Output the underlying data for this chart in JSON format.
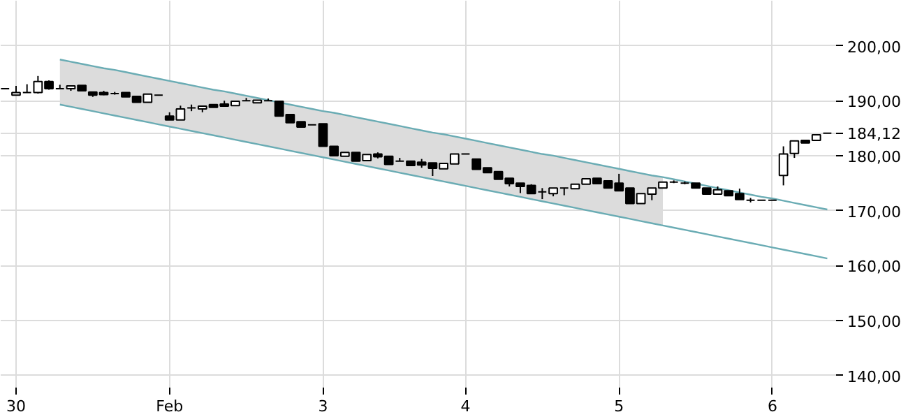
{
  "chart_data": {
    "type": "candlestick",
    "categories": [
      null,
      "30",
      null,
      null,
      null,
      null,
      null,
      null,
      null,
      null,
      null,
      null,
      null,
      null,
      null,
      "Feb",
      null,
      null,
      null,
      null,
      null,
      null,
      null,
      null,
      null,
      null,
      null,
      null,
      null,
      "3",
      null,
      null,
      null,
      null,
      null,
      null,
      null,
      null,
      null,
      null,
      null,
      null,
      "4",
      null,
      null,
      null,
      null,
      null,
      null,
      null,
      null,
      null,
      null,
      null,
      null,
      null,
      "5",
      null,
      null,
      null,
      null,
      null,
      null,
      null,
      null,
      null,
      null,
      null,
      null,
      null,
      "6",
      null,
      null,
      null,
      null,
      null
    ],
    "ohlc": [
      [
        192.2,
        192.2,
        192.2,
        192.2
      ],
      [
        191.0,
        192.7,
        191.0,
        191.5
      ],
      [
        191.5,
        193.0,
        191.5,
        191.5
      ],
      [
        191.5,
        194.5,
        191.3,
        193.5
      ],
      [
        193.5,
        193.7,
        192.0,
        192.2
      ],
      [
        192.2,
        192.9,
        192.2,
        192.2
      ],
      [
        192.2,
        192.7,
        191.8,
        192.7
      ],
      [
        192.8,
        192.8,
        191.8,
        191.8
      ],
      [
        191.6,
        191.6,
        190.7,
        191.0
      ],
      [
        191.5,
        191.8,
        191.0,
        191.1
      ],
      [
        191.3,
        191.6,
        191.1,
        191.3
      ],
      [
        191.5,
        191.5,
        190.7,
        190.7
      ],
      [
        190.8,
        190.8,
        189.7,
        189.7
      ],
      [
        189.7,
        191.2,
        189.7,
        191.2
      ],
      [
        191.0,
        191.0,
        191.0,
        191.0
      ],
      [
        187.2,
        187.9,
        186.5,
        186.5
      ],
      [
        186.5,
        189.1,
        186.5,
        188.5
      ],
      [
        188.7,
        189.3,
        188.1,
        188.7
      ],
      [
        188.5,
        189.0,
        187.9,
        189.0
      ],
      [
        189.3,
        189.3,
        188.8,
        188.8
      ],
      [
        189.4,
        190.0,
        189.0,
        189.0
      ],
      [
        189.1,
        189.9,
        189.1,
        189.9
      ],
      [
        190.0,
        190.5,
        190.0,
        190.0
      ],
      [
        189.6,
        190.1,
        189.6,
        190.1
      ],
      [
        190.0,
        190.4,
        190.0,
        190.0
      ],
      [
        189.9,
        189.9,
        187.2,
        187.2
      ],
      [
        187.5,
        187.5,
        186.0,
        186.0
      ],
      [
        186.2,
        186.2,
        185.2,
        185.2
      ],
      [
        185.6,
        185.6,
        185.6,
        185.6
      ],
      [
        185.8,
        185.8,
        181.7,
        181.7
      ],
      [
        181.7,
        181.7,
        180.0,
        180.0
      ],
      [
        179.9,
        180.6,
        179.9,
        180.6
      ],
      [
        180.6,
        180.6,
        179.0,
        179.0
      ],
      [
        179.1,
        180.2,
        179.1,
        180.2
      ],
      [
        180.3,
        180.6,
        179.5,
        179.8
      ],
      [
        179.9,
        179.9,
        178.4,
        178.4
      ],
      [
        179.0,
        179.6,
        179.0,
        179.0
      ],
      [
        179.0,
        179.0,
        178.2,
        178.2
      ],
      [
        178.8,
        179.4,
        177.8,
        178.3
      ],
      [
        178.7,
        178.7,
        176.3,
        177.7
      ],
      [
        177.6,
        178.6,
        177.6,
        178.6
      ],
      [
        178.5,
        180.3,
        178.5,
        180.3
      ],
      [
        180.3,
        180.3,
        180.3,
        180.3
      ],
      [
        179.4,
        179.4,
        177.5,
        177.5
      ],
      [
        177.8,
        177.8,
        176.9,
        176.9
      ],
      [
        177.1,
        177.1,
        175.7,
        175.7
      ],
      [
        175.9,
        175.9,
        174.4,
        174.9
      ],
      [
        175.0,
        175.0,
        173.2,
        174.4
      ],
      [
        174.6,
        174.8,
        173.1,
        173.1
      ],
      [
        173.4,
        174.1,
        172.1,
        173.4
      ],
      [
        173.1,
        174.1,
        172.6,
        174.1
      ],
      [
        174.1,
        174.1,
        172.8,
        174.1
      ],
      [
        174.0,
        174.8,
        174.0,
        174.8
      ],
      [
        174.8,
        175.8,
        174.8,
        175.8
      ],
      [
        175.9,
        175.9,
        174.9,
        174.9
      ],
      [
        175.4,
        175.4,
        174.1,
        174.1
      ],
      [
        175.0,
        176.7,
        173.6,
        173.6
      ],
      [
        174.1,
        174.1,
        171.3,
        171.3
      ],
      [
        171.3,
        173.1,
        171.3,
        173.1
      ],
      [
        173.0,
        174.1,
        171.9,
        174.1
      ],
      [
        174.1,
        175.2,
        174.1,
        175.2
      ],
      [
        175.2,
        175.5,
        175.0,
        175.2
      ],
      [
        175.0,
        175.3,
        174.8,
        175.0
      ],
      [
        175.0,
        175.0,
        174.1,
        174.1
      ],
      [
        174.1,
        174.1,
        173.0,
        173.0
      ],
      [
        173.0,
        174.4,
        173.0,
        173.8
      ],
      [
        173.6,
        173.6,
        172.7,
        172.7
      ],
      [
        173.1,
        174.0,
        172.0,
        172.0
      ],
      [
        171.9,
        172.3,
        171.5,
        171.9
      ],
      [
        171.9,
        171.9,
        171.9,
        171.9
      ],
      [
        171.9,
        171.9,
        171.9,
        171.9
      ],
      [
        176.4,
        181.7,
        174.6,
        180.3
      ],
      [
        180.4,
        182.7,
        179.6,
        182.7
      ],
      [
        182.8,
        182.8,
        182.3,
        182.3
      ],
      [
        182.8,
        183.8,
        182.8,
        183.8
      ],
      [
        184.1,
        184.1,
        184.1,
        184.1
      ]
    ],
    "color": "#000000",
    "series": [
      {
        "type": "line",
        "color": "#6aacb4",
        "upper": [
          null,
          null,
          null,
          null,
          null,
          197.5,
          197.1,
          196.7,
          196.3,
          195.9,
          195.6,
          195.2,
          194.8,
          194.4,
          194.0,
          193.6,
          193.2,
          192.8,
          192.4,
          192.0,
          191.7,
          191.3,
          190.9,
          190.5,
          190.1,
          189.7,
          189.3,
          188.9,
          188.5,
          188.1,
          187.8,
          187.4,
          187.0,
          186.6,
          186.2,
          185.8,
          185.4,
          185.0,
          184.6,
          184.2,
          183.9,
          183.5,
          183.1,
          182.7,
          182.3,
          181.9,
          181.5,
          181.1,
          180.7,
          180.3,
          180.0,
          179.6,
          179.2,
          178.8,
          178.4,
          178.0,
          177.6,
          177.2,
          176.8,
          176.4,
          176.1,
          null,
          null,
          null,
          null,
          null,
          null,
          null,
          null,
          null,
          null,
          null,
          null,
          null,
          null,
          null
        ],
        "lower": [
          null,
          null,
          null,
          null,
          null,
          189.3,
          188.9,
          188.5,
          188.1,
          187.7,
          187.3,
          186.9,
          186.5,
          186.1,
          185.7,
          185.3,
          184.9,
          184.5,
          184.1,
          183.7,
          183.3,
          182.9,
          182.5,
          182.1,
          181.7,
          181.3,
          180.9,
          180.5,
          180.1,
          179.7,
          179.3,
          178.9,
          178.5,
          178.1,
          177.7,
          177.3,
          176.9,
          176.5,
          176.1,
          175.7,
          175.3,
          174.9,
          174.5,
          174.1,
          173.7,
          173.3,
          172.9,
          172.5,
          172.1,
          171.7,
          171.3,
          170.9,
          170.5,
          170.1,
          169.7,
          169.3,
          168.9,
          168.5,
          168.1,
          167.7,
          167.3,
          null,
          null,
          null,
          null,
          null,
          null,
          null,
          null,
          null,
          null,
          null,
          null,
          null,
          null,
          null
        ],
        "values": [
          null,
          null,
          null,
          null,
          null,
          197.5,
          197.1,
          196.7,
          196.3,
          195.9,
          195.6,
          195.2,
          194.8,
          194.4,
          194.0,
          193.6,
          193.2,
          192.8,
          192.4,
          192.0,
          191.7,
          191.3,
          190.9,
          190.5,
          190.1,
          189.7,
          189.3,
          188.9,
          188.5,
          188.1,
          187.8,
          187.4,
          187.0,
          186.6,
          186.2,
          185.8,
          185.4,
          185.0,
          184.6,
          184.2,
          183.9,
          183.5,
          183.1,
          182.7,
          182.3,
          181.9,
          181.5,
          181.1,
          180.7,
          180.3,
          180.0,
          179.6,
          179.2,
          178.8,
          178.4,
          178.0,
          177.6,
          177.2,
          176.8,
          176.4,
          176.1,
          175.7,
          175.3,
          174.9,
          174.5,
          174.1,
          173.7,
          173.3,
          172.9,
          172.5,
          172.2,
          171.8,
          171.4,
          171.0,
          170.6,
          170.2
        ]
      },
      {
        "type": "line",
        "color": "#6aacb4",
        "values": [
          null,
          null,
          null,
          null,
          null,
          189.3,
          188.9,
          188.5,
          188.1,
          187.7,
          187.3,
          186.9,
          186.5,
          186.1,
          185.7,
          185.3,
          184.9,
          184.5,
          184.1,
          183.7,
          183.3,
          182.9,
          182.5,
          182.1,
          181.7,
          181.3,
          180.9,
          180.5,
          180.1,
          179.7,
          179.3,
          178.9,
          178.5,
          178.1,
          177.7,
          177.3,
          176.9,
          176.5,
          176.1,
          175.7,
          175.3,
          174.9,
          174.5,
          174.1,
          173.7,
          173.3,
          172.9,
          172.5,
          172.1,
          171.7,
          171.3,
          170.9,
          170.5,
          170.1,
          169.7,
          169.3,
          168.9,
          168.5,
          168.1,
          167.7,
          167.3,
          166.9,
          166.5,
          166.1,
          165.7,
          165.3,
          164.9,
          164.5,
          164.1,
          163.7,
          163.3,
          162.9,
          162.5,
          162.1,
          161.7,
          161.3
        ]
      }
    ],
    "ylim": [
      137.8,
      208.2
    ],
    "yticks": [
      {
        "value": 140,
        "label": "140,00"
      },
      {
        "value": 150,
        "label": "150,00"
      },
      {
        "value": 160,
        "label": "160,00"
      },
      {
        "value": 170,
        "label": "170,00"
      },
      {
        "value": 180,
        "label": "180,00"
      },
      {
        "value": 190,
        "label": "190,00"
      },
      {
        "value": 200,
        "label": "200,00"
      },
      {
        "value": 184.12,
        "label": "184,12"
      }
    ],
    "grid": true
  }
}
